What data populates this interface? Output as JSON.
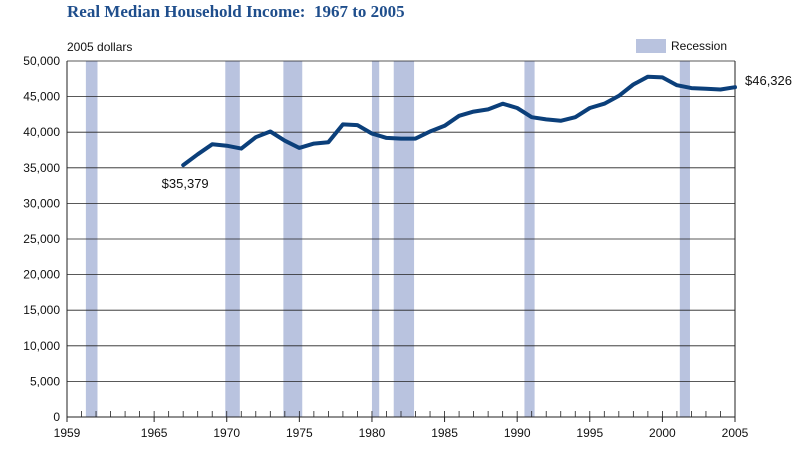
{
  "chart_data": {
    "type": "line",
    "title": "Real Median Household Income:  1967 to 2005",
    "unit_label": "2005 dollars",
    "xlabel": "",
    "ylabel": "",
    "xlim": [
      1959,
      2005
    ],
    "ylim": [
      0,
      50000
    ],
    "x_ticks": [
      1959,
      1965,
      1970,
      1975,
      1980,
      1985,
      1990,
      1995,
      2000,
      2005
    ],
    "y_ticks": [
      0,
      5000,
      10000,
      15000,
      20000,
      25000,
      30000,
      35000,
      40000,
      45000,
      50000
    ],
    "y_tick_labels": [
      "0",
      "5,000",
      "10,000",
      "15,000",
      "20,000",
      "25,000",
      "30,000",
      "35,000",
      "40,000",
      "45,000",
      "50,000"
    ],
    "grid": "horizontal",
    "legend": {
      "position": "top-right",
      "items": [
        {
          "label": "Recession",
          "color": "#b9c3df"
        }
      ]
    },
    "line_color": "#0b3f7a",
    "recessions": [
      [
        1960.3,
        1961.1
      ],
      [
        1969.9,
        1970.9
      ],
      [
        1973.9,
        1975.2
      ],
      [
        1980.0,
        1980.5
      ],
      [
        1981.5,
        1982.9
      ],
      [
        1990.5,
        1991.2
      ],
      [
        2001.2,
        2001.9
      ]
    ],
    "x": [
      1967,
      1968,
      1969,
      1970,
      1971,
      1972,
      1973,
      1974,
      1975,
      1976,
      1977,
      1978,
      1979,
      1980,
      1981,
      1982,
      1983,
      1984,
      1985,
      1986,
      1987,
      1988,
      1989,
      1990,
      1991,
      1992,
      1993,
      1994,
      1995,
      1996,
      1997,
      1998,
      1999,
      2000,
      2001,
      2002,
      2003,
      2004,
      2005
    ],
    "values": [
      35379,
      36900,
      38300,
      38100,
      37700,
      39300,
      40100,
      38800,
      37800,
      38400,
      38600,
      41100,
      41000,
      39800,
      39200,
      39100,
      39100,
      40100,
      40900,
      42300,
      42900,
      43200,
      44000,
      43400,
      42100,
      41800,
      41600,
      42100,
      43400,
      44000,
      45100,
      46700,
      47800,
      47700,
      46600,
      46200,
      46100,
      46000,
      46326
    ],
    "annotations": [
      {
        "text": "$35,379",
        "x": 1967,
        "y": 35379,
        "placement": "below"
      },
      {
        "text": "$46,326",
        "x": 2005,
        "y": 46326,
        "placement": "right"
      }
    ]
  }
}
